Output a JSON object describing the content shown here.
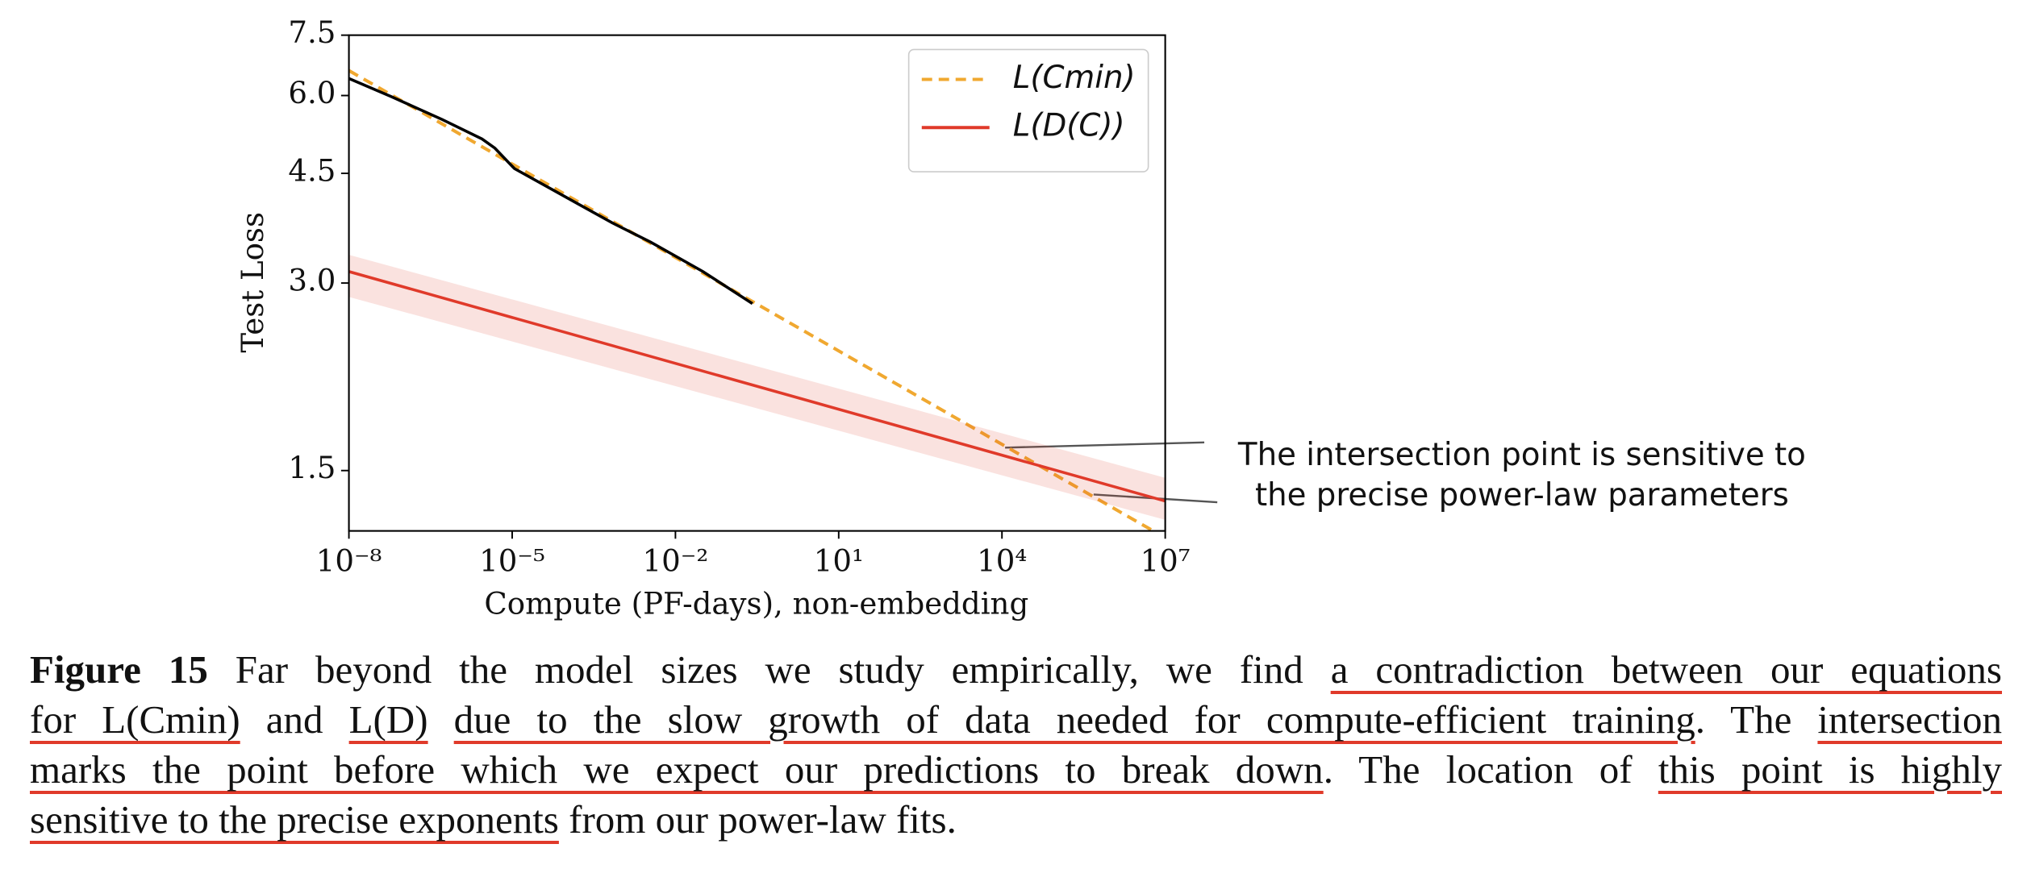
{
  "chart_data": {
    "type": "line",
    "xlabel": "Compute (PF-days), non-embedding",
    "ylabel": "Test Loss",
    "xscale": "log",
    "yscale": "log",
    "xlim": [
      1e-08,
      10000000.0
    ],
    "ylim": [
      1.2,
      7.5
    ],
    "xticks": [
      {
        "value": 1e-08,
        "label": "10⁻⁸"
      },
      {
        "value": 1e-05,
        "label": "10⁻⁵"
      },
      {
        "value": 0.01,
        "label": "10⁻²"
      },
      {
        "value": 10,
        "label": "10¹"
      },
      {
        "value": 10000,
        "label": "10⁴"
      },
      {
        "value": 10000000,
        "label": "10⁷"
      }
    ],
    "yticks": [
      1.5,
      {
        "value": 3,
        "label": "3.0"
      },
      4.5,
      {
        "value": 6,
        "label": "6.0"
      },
      7.5
    ],
    "legend": "upper right",
    "series": [
      {
        "name": "L(Cmin)",
        "color": "#f0a830",
        "dashed": true,
        "x": [
          1e-08,
          10000000.0
        ],
        "values": [
          6.58,
          1.17
        ]
      },
      {
        "name": "L(D(C))",
        "color": "#e03a2a",
        "x": [
          1e-08,
          10000000.0
        ],
        "values": [
          3.13,
          1.34
        ],
        "lower": [
          2.85,
          1.25
        ],
        "upper": [
          3.33,
          1.46
        ]
      },
      {
        "color": "#000000",
        "x": [
          1e-08,
          5.9e-08,
          5.2e-07,
          2.8e-06,
          4.8e-06,
          1.1e-05,
          7.6e-05,
          0.00068,
          0.0035,
          0.032,
          0.26
        ],
        "values": [
          6.39,
          5.98,
          5.49,
          5.11,
          4.94,
          4.58,
          4.17,
          3.75,
          3.49,
          3.13,
          2.78
        ]
      }
    ],
    "annotation": [
      "The intersection point is sensitive to",
      "the precise power-law parameters"
    ]
  },
  "caption": {
    "lines": [
      [
        {
          "text": "Figure 15",
          "style": "bold"
        },
        {
          "text": " Far beyond the model sizes we study empirically, we find ",
          "style": "plain"
        },
        {
          "text": "a contradiction between our equations",
          "style": "underline"
        }
      ],
      [
        {
          "text": "for L(Cmin)",
          "style": "underline"
        },
        {
          "text": " and ",
          "style": "plain"
        },
        {
          "text": "L(D)",
          "style": "underline"
        },
        {
          "text": " ",
          "style": "plain"
        },
        {
          "text": "due to the slow growth of data needed for compute-efficient training",
          "style": "underline"
        },
        {
          "text": ". The ",
          "style": "plain"
        },
        {
          "text": "intersection",
          "style": "underline"
        }
      ],
      [
        {
          "text": "marks the point before which we expect our predictions to break down",
          "style": "underline"
        },
        {
          "text": ". The location of ",
          "style": "plain"
        },
        {
          "text": "this point is highly",
          "style": "underline"
        }
      ],
      [
        {
          "text": "sensitive to the precise exponents",
          "style": "underline"
        },
        {
          "text": " from our power-law fits.",
          "style": "plain"
        }
      ]
    ]
  }
}
